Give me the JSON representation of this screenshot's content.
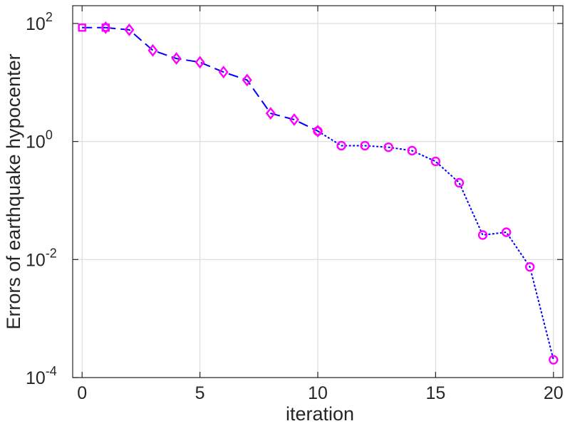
{
  "chart_data": {
    "type": "line",
    "xlabel": "iteration",
    "ylabel": "Errors of earthquake hypocenter",
    "xlim": [
      -0.4,
      20.4
    ],
    "ylim": [
      0.0001,
      200
    ],
    "yscale": "log",
    "grid": true,
    "xticks": [
      0,
      5,
      10,
      15,
      20
    ],
    "xtick_labels": [
      "0",
      "5",
      "10",
      "15",
      "20"
    ],
    "yticks": [
      0.0001,
      0.01,
      1,
      100
    ],
    "ytick_labels": [
      {
        "base": "10",
        "exp": "-4"
      },
      {
        "base": "10",
        "exp": "-2"
      },
      {
        "base": "10",
        "exp": "0"
      },
      {
        "base": "10",
        "exp": "2"
      }
    ],
    "series": [
      {
        "line_color": "#0000ff",
        "marker_color": "#ff00ff",
        "marker": "square",
        "line_style": "dashed",
        "x": [
          0,
          1
        ],
        "y": [
          85,
          85
        ]
      },
      {
        "line_color": "#0000ff",
        "marker_color": "#ff00ff",
        "marker": "diamond",
        "line_style": "dashed",
        "x": [
          1,
          2,
          3,
          4,
          5,
          6,
          7,
          8,
          9,
          10
        ],
        "y": [
          85,
          78,
          35,
          25.5,
          22,
          15,
          11,
          3.0,
          2.35,
          1.5
        ]
      },
      {
        "line_color": "#0000ff",
        "marker_color": "#ff00ff",
        "marker": "circle",
        "line_style": "dotted",
        "x": [
          10,
          11,
          12,
          13,
          14,
          15,
          16,
          17,
          18,
          19,
          20
        ],
        "y": [
          1.5,
          0.85,
          0.85,
          0.8,
          0.7,
          0.46,
          0.2,
          0.026,
          0.029,
          0.0075,
          0.0002
        ]
      }
    ]
  }
}
